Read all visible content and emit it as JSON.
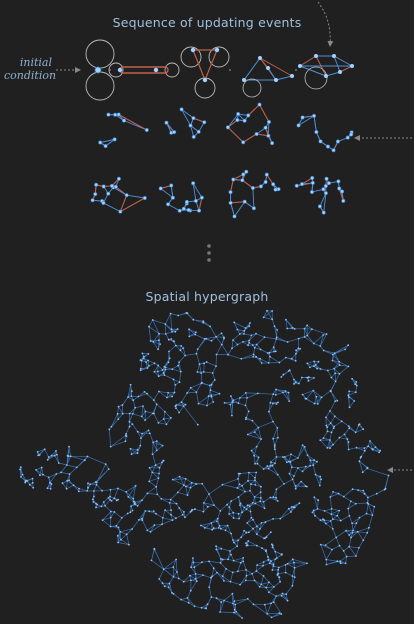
{
  "header": {
    "title": "Sequence of updating events",
    "initial_condition": "initial condition"
  },
  "section2": {
    "title": "Spatial hypergraph"
  },
  "colors": {
    "background": "#202020",
    "edge_blue": "#4f8fd6",
    "edge_red": "#c0604c",
    "node_fill": "#9fd4ff",
    "title_text": "#9fc0dc",
    "arrow": "#8a8a8a"
  },
  "icons": [
    "ellipsis-vertical-icon",
    "arrow-icon"
  ]
}
